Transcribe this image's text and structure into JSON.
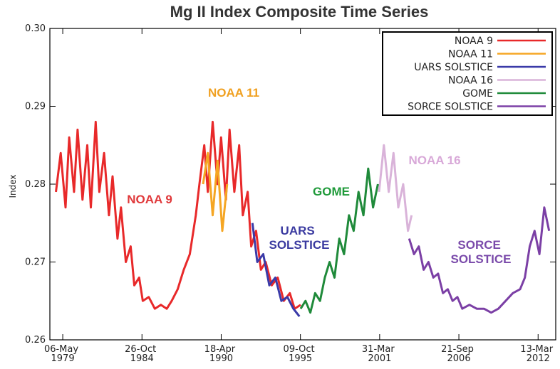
{
  "chart_data": {
    "type": "line",
    "title": "Mg II Index Composite Time Series",
    "y_label": "Index",
    "xlim": [
      "1978-06-15",
      "2013-06-01"
    ],
    "xticks": [
      {
        "value": "1979-05-06",
        "label": "06-May\n1979"
      },
      {
        "value": "1984-10-26",
        "label": "26-Oct\n1984"
      },
      {
        "value": "1990-04-18",
        "label": "18-Apr\n1990"
      },
      {
        "value": "1995-10-09",
        "label": "09-Oct\n1995"
      },
      {
        "value": "2001-03-31",
        "label": "31-Mar\n2001"
      },
      {
        "value": "2006-09-21",
        "label": "21-Sep\n2006"
      },
      {
        "value": "2012-03-13",
        "label": "13-Mar\n2012"
      }
    ],
    "ylim": [
      0.26,
      0.3
    ],
    "yticks": [
      0.26,
      0.27,
      0.28,
      0.29,
      {
        "value": 0.3,
        "label": "0.30"
      }
    ],
    "legend": "top-right",
    "series": [
      {
        "name": "NOAA 9",
        "color": "#e8292a",
        "x": [
          "1978-11",
          "1979-03",
          "1979-07",
          "1979-10",
          "1980-02",
          "1980-05",
          "1980-09",
          "1981-01",
          "1981-04",
          "1981-08",
          "1981-11",
          "1982-03",
          "1982-07",
          "1982-10",
          "1983-02",
          "1983-05",
          "1983-09",
          "1984-01",
          "1984-04",
          "1984-08",
          "1984-11",
          "1985-04",
          "1985-09",
          "1986-02",
          "1986-07",
          "1986-11",
          "1987-04",
          "1987-09",
          "1988-02",
          "1988-07",
          "1988-10",
          "1989-02",
          "1989-05",
          "1989-09",
          "1990-01",
          "1990-04",
          "1990-08",
          "1990-11",
          "1991-03",
          "1991-07",
          "1991-10",
          "1992-02",
          "1992-05",
          "1992-09",
          "1993-01",
          "1993-05",
          "1993-10",
          "1994-03",
          "1994-08",
          "1995-01",
          "1995-05",
          "1995-10"
        ],
        "values": [
          0.279,
          0.284,
          0.277,
          0.286,
          0.279,
          0.287,
          0.278,
          0.285,
          0.277,
          0.288,
          0.279,
          0.284,
          0.276,
          0.281,
          0.273,
          0.277,
          0.27,
          0.272,
          0.267,
          0.268,
          0.265,
          0.2655,
          0.264,
          0.2645,
          0.264,
          0.265,
          0.2665,
          0.269,
          0.271,
          0.276,
          0.28,
          0.285,
          0.279,
          0.288,
          0.28,
          0.286,
          0.278,
          0.287,
          0.279,
          0.285,
          0.276,
          0.279,
          0.272,
          0.274,
          0.269,
          0.27,
          0.267,
          0.268,
          0.265,
          0.266,
          0.264,
          0.2645
        ]
      },
      {
        "name": "NOAA 11",
        "color": "#f5a623",
        "x": [
          "1989-01",
          "1989-05",
          "1989-09",
          "1990-01",
          "1990-05",
          "1990-09"
        ],
        "values": [
          0.28,
          0.284,
          0.276,
          0.283,
          0.274,
          0.28
        ]
      },
      {
        "name": "UARS SOLSTICE",
        "color": "#3a3aa8",
        "x": [
          "1992-06",
          "1992-10",
          "1993-03",
          "1993-08",
          "1994-01",
          "1994-06",
          "1994-11",
          "1995-04",
          "1995-09"
        ],
        "values": [
          0.275,
          0.27,
          0.271,
          0.267,
          0.268,
          0.265,
          0.2655,
          0.264,
          0.263
        ]
      },
      {
        "name": "NOAA 16",
        "color": "#d9b3d9",
        "x": [
          "2001-03",
          "2001-07",
          "2001-11",
          "2002-03",
          "2002-07",
          "2002-11",
          "2003-03",
          "2003-06"
        ],
        "values": [
          0.279,
          0.285,
          0.279,
          0.284,
          0.277,
          0.28,
          0.274,
          0.276
        ]
      },
      {
        "name": "GOME",
        "color": "#1f8a3a",
        "x": [
          "1995-10",
          "1996-02",
          "1996-06",
          "1996-10",
          "1997-02",
          "1997-06",
          "1997-10",
          "1998-02",
          "1998-06",
          "1998-10",
          "1999-02",
          "1999-06",
          "1999-10",
          "2000-02",
          "2000-06",
          "2000-10",
          "2001-02"
        ],
        "values": [
          0.264,
          0.265,
          0.2635,
          0.266,
          0.265,
          0.268,
          0.27,
          0.268,
          0.273,
          0.271,
          0.276,
          0.274,
          0.279,
          0.276,
          0.282,
          0.277,
          0.28
        ]
      },
      {
        "name": "SORCE SOLSTICE",
        "color": "#7b3fa5",
        "x": [
          "2003-04",
          "2003-08",
          "2003-12",
          "2004-04",
          "2004-08",
          "2004-12",
          "2005-04",
          "2005-08",
          "2005-12",
          "2006-04",
          "2006-08",
          "2006-12",
          "2007-06",
          "2007-12",
          "2008-06",
          "2008-12",
          "2009-06",
          "2009-12",
          "2010-06",
          "2010-12",
          "2011-04",
          "2011-08",
          "2011-12",
          "2012-04",
          "2012-08",
          "2012-12"
        ],
        "values": [
          0.273,
          0.271,
          0.272,
          0.269,
          0.27,
          0.268,
          0.2685,
          0.266,
          0.2665,
          0.265,
          0.2655,
          0.264,
          0.2645,
          0.264,
          0.264,
          0.2635,
          0.264,
          0.265,
          0.266,
          0.2665,
          0.268,
          0.272,
          0.274,
          0.271,
          0.277,
          0.274
        ]
      }
    ],
    "annotations": [
      {
        "text": "NOAA 9",
        "color": "#e0383a"
      },
      {
        "text": "NOAA 11",
        "color": "#f0a020"
      },
      {
        "text": "UARS\nSOLSTICE",
        "color": "#3a3aa0"
      },
      {
        "text": "GOME",
        "color": "#1f9a3a"
      },
      {
        "text": "NOAA 16",
        "color": "#d8a8d8"
      },
      {
        "text": "SORCE\nSOLSTICE",
        "color": "#7a4aaa"
      }
    ]
  }
}
